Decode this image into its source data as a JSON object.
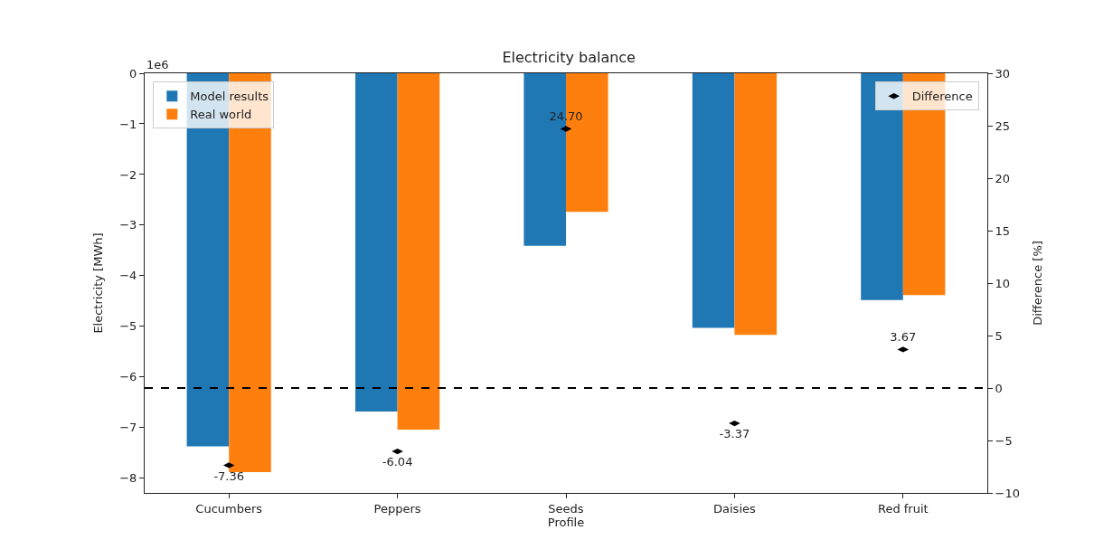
{
  "chart_data": {
    "type": "bar",
    "title": "Electricity balance",
    "xlabel": "Profile",
    "ylabel": "Electricity [MWh]",
    "y2label": "Difference [%]",
    "categories": [
      "Cucumbers",
      "Peppers",
      "Seeds",
      "Daisies",
      "Red fruit"
    ],
    "series": [
      {
        "name": "Model results",
        "color": "#1f77b4",
        "values": [
          -7.37,
          -6.68,
          -3.41,
          -5.03,
          -4.48
        ]
      },
      {
        "name": "Real world",
        "color": "#ff7f0e",
        "values": [
          -7.88,
          -7.04,
          -2.74,
          -5.17,
          -4.38
        ]
      },
      {
        "name": "Difference",
        "type": "scatter",
        "axis": "y2",
        "color": "#000000",
        "values": [
          -7.36,
          -6.04,
          24.7,
          -3.37,
          3.67
        ],
        "value_labels": [
          "-7.36",
          "-6.04",
          "24.70",
          "-3.37",
          "3.67"
        ]
      }
    ],
    "ylim": [
      -8.29,
      0
    ],
    "yticks": [
      {
        "value": -8,
        "label": "−8"
      },
      {
        "value": -7,
        "label": "−7"
      },
      {
        "value": -6,
        "label": "−6"
      },
      {
        "value": -5,
        "label": "−5"
      },
      {
        "value": -4,
        "label": "−4"
      },
      {
        "value": -3,
        "label": "−3"
      },
      {
        "value": -2,
        "label": "−2"
      },
      {
        "value": -1,
        "label": "−1"
      },
      0
    ],
    "y2lim": [
      -10,
      30
    ],
    "y2ticks": [
      {
        "value": -10,
        "label": "−10"
      },
      {
        "value": -5,
        "label": "−5"
      },
      0,
      5,
      10,
      15,
      20,
      25,
      30
    ],
    "ref_lines": [
      {
        "axis": "y2",
        "value": 0,
        "color": "#000000",
        "line_style": "dashed"
      }
    ],
    "annotations": [
      "1e6"
    ],
    "legend": "top left"
  }
}
